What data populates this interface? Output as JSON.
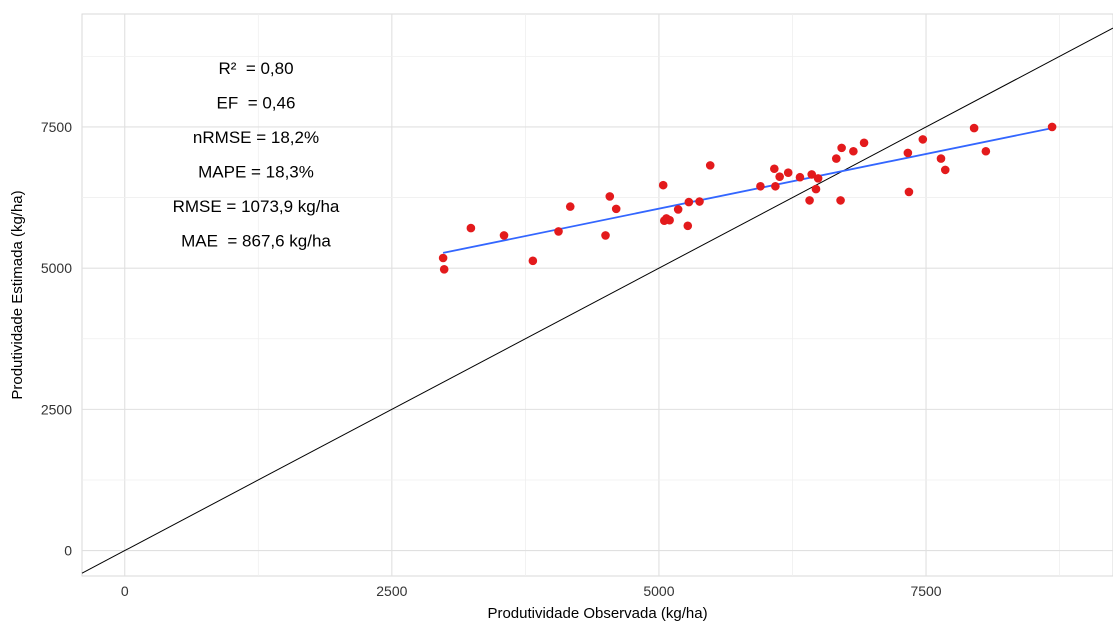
{
  "chart_data": {
    "type": "scatter",
    "xlabel": "Produtividade Observada (kg/ha)",
    "ylabel": "Produtividade Estimada (kg/ha)",
    "xlim": [
      -400,
      9250
    ],
    "ylim": [
      -450,
      9500
    ],
    "x_ticks": [
      0,
      2500,
      5000,
      7500
    ],
    "y_ticks": [
      0,
      2500,
      5000,
      7500
    ],
    "grid": true,
    "stats": [
      "R²  = 0,80",
      "EF  = 0,46",
      "nRMSE = 18,2%",
      "MAPE = 18,3%",
      "RMSE = 1073,9 kg/ha",
      "MAE  = 867,6 kg/ha"
    ],
    "points": [
      {
        "x": 2980,
        "y": 5180
      },
      {
        "x": 2990,
        "y": 4980
      },
      {
        "x": 3240,
        "y": 5710
      },
      {
        "x": 3550,
        "y": 5580
      },
      {
        "x": 3820,
        "y": 5130
      },
      {
        "x": 4060,
        "y": 5650
      },
      {
        "x": 4170,
        "y": 6090
      },
      {
        "x": 4500,
        "y": 5580
      },
      {
        "x": 4540,
        "y": 6270
      },
      {
        "x": 4600,
        "y": 6050
      },
      {
        "x": 5040,
        "y": 6470
      },
      {
        "x": 5050,
        "y": 5840
      },
      {
        "x": 5070,
        "y": 5880
      },
      {
        "x": 5100,
        "y": 5850
      },
      {
        "x": 5180,
        "y": 6040
      },
      {
        "x": 5270,
        "y": 5750
      },
      {
        "x": 5280,
        "y": 6170
      },
      {
        "x": 5380,
        "y": 6180
      },
      {
        "x": 5480,
        "y": 6820
      },
      {
        "x": 5950,
        "y": 6450
      },
      {
        "x": 6080,
        "y": 6760
      },
      {
        "x": 6090,
        "y": 6450
      },
      {
        "x": 6130,
        "y": 6620
      },
      {
        "x": 6210,
        "y": 6690
      },
      {
        "x": 6320,
        "y": 6610
      },
      {
        "x": 6410,
        "y": 6200
      },
      {
        "x": 6430,
        "y": 6660
      },
      {
        "x": 6470,
        "y": 6400
      },
      {
        "x": 6490,
        "y": 6590
      },
      {
        "x": 6660,
        "y": 6940
      },
      {
        "x": 6700,
        "y": 6200
      },
      {
        "x": 6710,
        "y": 7130
      },
      {
        "x": 6820,
        "y": 7070
      },
      {
        "x": 6920,
        "y": 7220
      },
      {
        "x": 7330,
        "y": 7040
      },
      {
        "x": 7340,
        "y": 6350
      },
      {
        "x": 7470,
        "y": 7280
      },
      {
        "x": 7640,
        "y": 6940
      },
      {
        "x": 7680,
        "y": 6740
      },
      {
        "x": 7950,
        "y": 7480
      },
      {
        "x": 8060,
        "y": 7070
      },
      {
        "x": 8680,
        "y": 7500
      }
    ],
    "fit_line": {
      "x": [
        2980,
        8680
      ],
      "y": [
        5270,
        7480
      ],
      "color": "#3366ff"
    },
    "identity_line": {
      "color": "#000000"
    },
    "point_color": "#e31a1c"
  }
}
